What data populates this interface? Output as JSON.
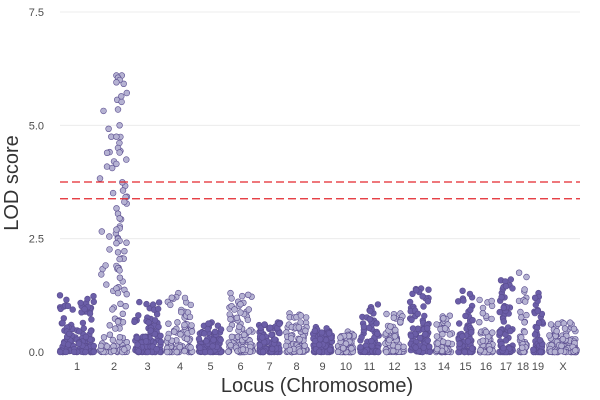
{
  "chart_data": {
    "type": "scatter",
    "title": "",
    "xlabel": "Locus (Chromosome)",
    "ylabel": "LOD score",
    "ylim": [
      0,
      7.5
    ],
    "yticks": [
      0.0,
      2.5,
      5.0,
      7.5
    ],
    "ytick_labels": [
      "0.0",
      "2.5",
      "5.0",
      "7.5"
    ],
    "grid": true,
    "legend": "none",
    "colors": {
      "odd_chromosome": "#6b5ea8",
      "even_chromosome": "#b5b2d2",
      "threshold": "#e3262c",
      "grid": "#ececec",
      "dot_outline": "#5a4d8f"
    },
    "chromosomes": [
      {
        "name": "1",
        "peak": 1.25
      },
      {
        "name": "2",
        "peak": 6.1
      },
      {
        "name": "3",
        "peak": 1.1
      },
      {
        "name": "4",
        "peak": 1.3
      },
      {
        "name": "5",
        "peak": 0.65
      },
      {
        "name": "6",
        "peak": 1.3
      },
      {
        "name": "7",
        "peak": 0.65
      },
      {
        "name": "8",
        "peak": 0.85
      },
      {
        "name": "9",
        "peak": 0.55
      },
      {
        "name": "10",
        "peak": 0.45
      },
      {
        "name": "11",
        "peak": 1.05
      },
      {
        "name": "12",
        "peak": 0.85
      },
      {
        "name": "13",
        "peak": 1.4
      },
      {
        "name": "14",
        "peak": 0.8
      },
      {
        "name": "15",
        "peak": 1.35
      },
      {
        "name": "16",
        "peak": 1.15
      },
      {
        "name": "17",
        "peak": 1.6
      },
      {
        "name": "18",
        "peak": 1.75
      },
      {
        "name": "19",
        "peak": 1.3
      },
      {
        "name": "X",
        "peak": 0.65
      }
    ],
    "thresholds": [
      3.75,
      3.38
    ],
    "peak_series": {
      "chromosome": "2",
      "values": [
        6.1,
        6.05,
        6.0,
        5.95,
        5.35,
        5.0,
        4.75,
        4.5,
        4.4,
        4.15,
        3.05,
        2.95,
        2.7,
        2.5,
        2.45,
        2.4,
        2.2,
        2.05,
        1.9,
        1.85,
        1.8,
        1.4,
        1.3
      ]
    }
  }
}
